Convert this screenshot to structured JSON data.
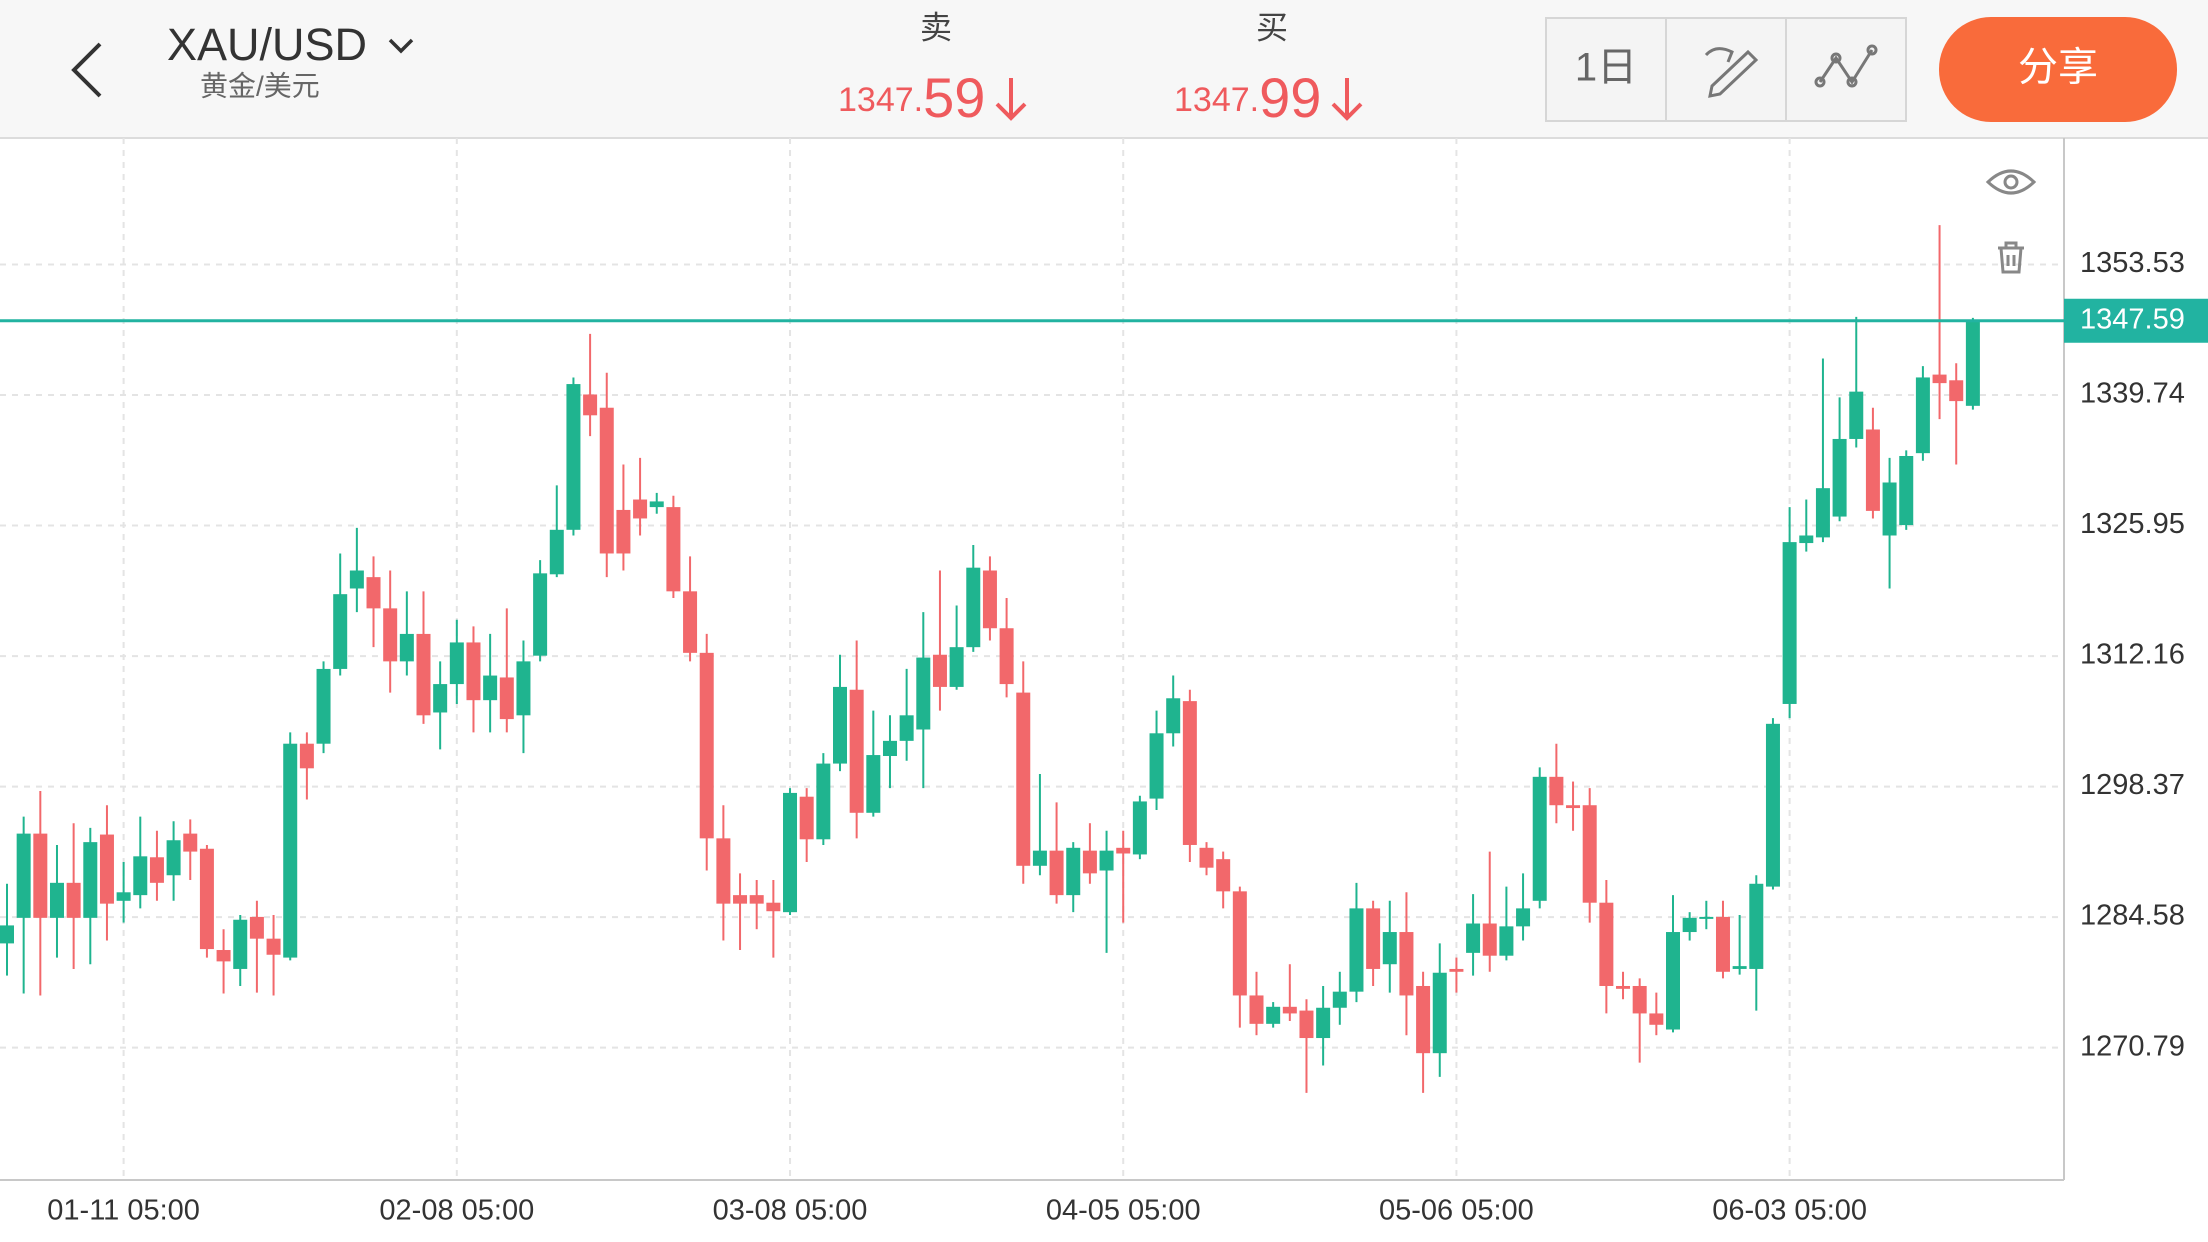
{
  "header": {
    "symbol": "XAU/USD",
    "name": "黄金/美元",
    "sell": {
      "label": "卖",
      "price_main": "1347.",
      "price_minor": "59"
    },
    "buy": {
      "label": "买",
      "price_main": "1347.",
      "price_minor": "99"
    },
    "period": "1日",
    "share": "分享"
  },
  "chart_data": {
    "type": "candlestick",
    "categories": [
      null,
      null,
      null,
      null,
      null,
      null,
      null,
      "01-11 05:00",
      null,
      null,
      null,
      null,
      null,
      null,
      null,
      null,
      null,
      null,
      null,
      null,
      null,
      null,
      null,
      null,
      null,
      null,
      null,
      "02-08 05:00",
      null,
      null,
      null,
      null,
      null,
      null,
      null,
      null,
      null,
      null,
      null,
      null,
      null,
      null,
      null,
      null,
      null,
      null,
      null,
      "03-08 05:00",
      null,
      null,
      null,
      null,
      null,
      null,
      null,
      null,
      null,
      null,
      null,
      null,
      null,
      null,
      null,
      null,
      null,
      null,
      null,
      "04-05 05:00",
      null,
      null,
      null,
      null,
      null,
      null,
      null,
      null,
      null,
      null,
      null,
      null,
      null,
      null,
      null,
      null,
      null,
      null,
      null,
      "05-06 05:00",
      null,
      null,
      null,
      null,
      null,
      null,
      null,
      null,
      null,
      null,
      null,
      null,
      null,
      null,
      null,
      null,
      null,
      null,
      null,
      "06-03 05:00",
      null,
      null,
      null,
      null,
      null,
      null,
      null,
      null,
      null,
      null,
      null
    ],
    "ohlc": [
      [
        1281.8,
        1288.1,
        1278.4,
        1283.7
      ],
      [
        1284.5,
        1295.2,
        1276.5,
        1293.4
      ],
      [
        1293.4,
        1297.9,
        1276.3,
        1284.5
      ],
      [
        1284.5,
        1292.2,
        1280.3,
        1288.2
      ],
      [
        1288.2,
        1294.5,
        1279.1,
        1284.5
      ],
      [
        1284.5,
        1294.0,
        1279.6,
        1292.5
      ],
      [
        1293.3,
        1296.4,
        1282.1,
        1286.0
      ],
      [
        1286.3,
        1290.4,
        1284.0,
        1287.2
      ],
      [
        1286.9,
        1295.2,
        1285.5,
        1291.0
      ],
      [
        1290.9,
        1293.7,
        1286.3,
        1288.2
      ],
      [
        1289.0,
        1294.7,
        1286.3,
        1292.7
      ],
      [
        1293.4,
        1294.9,
        1288.5,
        1291.5
      ],
      [
        1291.8,
        1292.2,
        1280.3,
        1281.2
      ],
      [
        1281.1,
        1283.3,
        1276.5,
        1279.9
      ],
      [
        1279.1,
        1284.8,
        1277.3,
        1284.3
      ],
      [
        1284.6,
        1286.3,
        1276.6,
        1282.3
      ],
      [
        1282.3,
        1284.8,
        1276.3,
        1280.6
      ],
      [
        1280.3,
        1304.1,
        1280.0,
        1302.9
      ],
      [
        1302.9,
        1304.1,
        1297.0,
        1300.3
      ],
      [
        1302.9,
        1311.6,
        1301.9,
        1310.8
      ],
      [
        1310.8,
        1323.0,
        1310.1,
        1318.7
      ],
      [
        1319.3,
        1325.7,
        1316.8,
        1321.2
      ],
      [
        1320.5,
        1322.7,
        1313.1,
        1317.2
      ],
      [
        1317.2,
        1321.2,
        1308.3,
        1311.6
      ],
      [
        1311.6,
        1319.0,
        1310.1,
        1314.5
      ],
      [
        1314.5,
        1319.0,
        1305.0,
        1305.9
      ],
      [
        1306.2,
        1311.6,
        1302.3,
        1309.2
      ],
      [
        1309.2,
        1316.0,
        1307.1,
        1313.6
      ],
      [
        1313.6,
        1315.3,
        1304.1,
        1307.5
      ],
      [
        1307.5,
        1314.5,
        1304.1,
        1310.1
      ],
      [
        1309.9,
        1317.2,
        1304.1,
        1305.5
      ],
      [
        1305.9,
        1313.8,
        1301.9,
        1311.6
      ],
      [
        1312.2,
        1322.3,
        1311.6,
        1320.9
      ],
      [
        1320.8,
        1330.2,
        1320.5,
        1325.5
      ],
      [
        1325.5,
        1341.6,
        1324.9,
        1340.9
      ],
      [
        1339.8,
        1346.2,
        1335.4,
        1337.6
      ],
      [
        1338.4,
        1342.1,
        1320.5,
        1323.0
      ],
      [
        1327.6,
        1332.4,
        1321.2,
        1323.0
      ],
      [
        1328.7,
        1333.1,
        1324.9,
        1326.7
      ],
      [
        1327.9,
        1329.4,
        1327.2,
        1328.5
      ],
      [
        1327.9,
        1329.1,
        1318.3,
        1319.0
      ],
      [
        1319.0,
        1322.7,
        1311.6,
        1312.5
      ],
      [
        1312.5,
        1314.5,
        1289.5,
        1292.9
      ],
      [
        1292.9,
        1296.4,
        1282.1,
        1286.0
      ],
      [
        1286.9,
        1289.2,
        1281.1,
        1286.0
      ],
      [
        1286.9,
        1288.5,
        1283.3,
        1286.0
      ],
      [
        1286.1,
        1288.5,
        1280.3,
        1285.2
      ],
      [
        1285.1,
        1298.2,
        1284.8,
        1297.7
      ],
      [
        1297.3,
        1298.2,
        1290.4,
        1292.8
      ],
      [
        1292.8,
        1301.9,
        1292.2,
        1300.8
      ],
      [
        1300.8,
        1312.3,
        1300.0,
        1308.9
      ],
      [
        1308.6,
        1313.8,
        1292.9,
        1295.6
      ],
      [
        1295.6,
        1306.4,
        1295.2,
        1301.7
      ],
      [
        1301.6,
        1305.9,
        1298.2,
        1303.2
      ],
      [
        1303.2,
        1310.8,
        1301.1,
        1305.9
      ],
      [
        1304.4,
        1316.8,
        1298.2,
        1312.0
      ],
      [
        1312.3,
        1321.2,
        1306.4,
        1308.9
      ],
      [
        1308.9,
        1317.5,
        1308.6,
        1313.1
      ],
      [
        1313.1,
        1323.9,
        1312.6,
        1321.5
      ],
      [
        1321.2,
        1322.7,
        1313.8,
        1315.1
      ],
      [
        1315.1,
        1318.3,
        1307.8,
        1309.2
      ],
      [
        1308.3,
        1311.6,
        1288.1,
        1290.0
      ],
      [
        1290.0,
        1299.7,
        1289.0,
        1291.6
      ],
      [
        1291.6,
        1296.7,
        1286.0,
        1286.9
      ],
      [
        1286.9,
        1292.5,
        1285.1,
        1291.9
      ],
      [
        1291.6,
        1294.5,
        1288.1,
        1289.2
      ],
      [
        1289.5,
        1293.7,
        1280.8,
        1291.6
      ],
      [
        1291.9,
        1293.7,
        1284.0,
        1291.3
      ],
      [
        1291.2,
        1297.4,
        1290.7,
        1296.8
      ],
      [
        1297.1,
        1306.4,
        1295.9,
        1304.0
      ],
      [
        1304.0,
        1310.1,
        1302.6,
        1307.7
      ],
      [
        1307.4,
        1308.6,
        1290.4,
        1292.2
      ],
      [
        1291.9,
        1292.5,
        1289.0,
        1289.8
      ],
      [
        1290.7,
        1291.5,
        1285.5,
        1287.3
      ],
      [
        1287.3,
        1287.8,
        1272.9,
        1276.3
      ],
      [
        1276.3,
        1278.8,
        1272.1,
        1273.3
      ],
      [
        1273.3,
        1275.6,
        1272.9,
        1275.1
      ],
      [
        1275.1,
        1279.6,
        1273.6,
        1274.4
      ],
      [
        1274.7,
        1275.9,
        1266.0,
        1271.8
      ],
      [
        1271.8,
        1277.3,
        1268.9,
        1275.0
      ],
      [
        1275.0,
        1278.8,
        1273.2,
        1276.7
      ],
      [
        1276.7,
        1288.2,
        1275.6,
        1285.5
      ],
      [
        1285.5,
        1286.3,
        1277.3,
        1279.1
      ],
      [
        1279.6,
        1286.3,
        1276.6,
        1283.0
      ],
      [
        1283.0,
        1287.2,
        1272.1,
        1276.3
      ],
      [
        1277.3,
        1278.8,
        1266.0,
        1270.2
      ],
      [
        1270.2,
        1281.8,
        1267.7,
        1278.7
      ],
      [
        1279.1,
        1280.3,
        1276.6,
        1278.8
      ],
      [
        1280.8,
        1287.0,
        1278.4,
        1283.9
      ],
      [
        1283.9,
        1291.5,
        1278.8,
        1280.5
      ],
      [
        1280.5,
        1287.8,
        1280.0,
        1283.6
      ],
      [
        1283.6,
        1289.2,
        1282.1,
        1285.5
      ],
      [
        1286.3,
        1300.4,
        1285.5,
        1299.4
      ],
      [
        1299.4,
        1302.9,
        1294.5,
        1296.4
      ],
      [
        1296.4,
        1298.9,
        1293.7,
        1296.1
      ],
      [
        1296.4,
        1298.2,
        1284.0,
        1286.1
      ],
      [
        1286.1,
        1288.5,
        1274.4,
        1277.3
      ],
      [
        1277.3,
        1278.8,
        1275.9,
        1277.0
      ],
      [
        1277.3,
        1278.1,
        1269.2,
        1274.4
      ],
      [
        1274.4,
        1276.6,
        1272.1,
        1273.2
      ],
      [
        1272.7,
        1286.9,
        1272.4,
        1283.0
      ],
      [
        1283.0,
        1285.1,
        1282.1,
        1284.5
      ],
      [
        1284.5,
        1286.3,
        1283.3,
        1284.6
      ],
      [
        1284.6,
        1286.3,
        1278.1,
        1278.8
      ],
      [
        1279.1,
        1284.8,
        1278.5,
        1279.4
      ],
      [
        1279.1,
        1289.0,
        1274.7,
        1288.1
      ],
      [
        1287.8,
        1305.6,
        1287.5,
        1305.0
      ],
      [
        1307.1,
        1327.9,
        1305.6,
        1324.2
      ],
      [
        1324.1,
        1328.7,
        1323.2,
        1324.9
      ],
      [
        1324.7,
        1343.6,
        1324.2,
        1329.9
      ],
      [
        1326.9,
        1339.5,
        1326.4,
        1335.1
      ],
      [
        1335.1,
        1348.0,
        1334.2,
        1340.1
      ],
      [
        1336.1,
        1338.4,
        1326.7,
        1327.5
      ],
      [
        1324.9,
        1333.1,
        1319.3,
        1330.5
      ],
      [
        1326.0,
        1333.9,
        1325.5,
        1333.3
      ],
      [
        1333.6,
        1342.8,
        1332.8,
        1341.6
      ],
      [
        1341.9,
        1357.7,
        1337.2,
        1341.0
      ],
      [
        1341.3,
        1343.1,
        1332.4,
        1339.1
      ],
      [
        1338.6,
        1347.9,
        1338.2,
        1347.59
      ]
    ],
    "up_color": "#1fb48f",
    "down_color": "#f2686b",
    "ylim": [
      1256.8,
      1366.9
    ],
    "yticks": [
      1270.79,
      1284.58,
      1298.37,
      1312.16,
      1325.95,
      1339.74,
      1353.53
    ],
    "grid": true,
    "last_price": 1347.59,
    "last_price_color": "#22b3a1"
  }
}
